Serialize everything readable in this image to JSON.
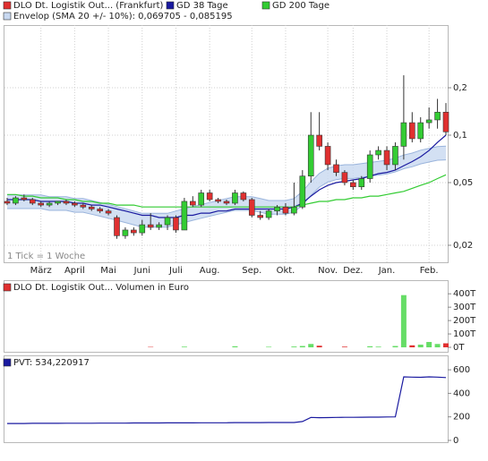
{
  "chart_data": [
    {
      "type": "candlestick",
      "log_scale": true,
      "grid": true,
      "note": "1 Tick = 1 Woche",
      "categories": [
        null,
        null,
        null,
        null,
        "März",
        null,
        null,
        null,
        "April",
        null,
        null,
        null,
        "Mai",
        null,
        null,
        null,
        "Juni",
        null,
        null,
        null,
        "Juli",
        null,
        null,
        null,
        "Aug.",
        null,
        null,
        null,
        null,
        "Sep.",
        null,
        null,
        null,
        "Okt.",
        null,
        null,
        null,
        null,
        "Nov.",
        null,
        null,
        "Dez.",
        null,
        null,
        null,
        "Jan.",
        null,
        null,
        null,
        null,
        "Feb.",
        null,
        null
      ],
      "series": [
        {
          "name": "DLO Dt. Logistik Out... (Frankfurt)",
          "color": "#e03030",
          "up_color": "#33cc33",
          "open": [
            0.038,
            0.037,
            0.04,
            0.039,
            0.037,
            0.036,
            0.037,
            0.038,
            0.037,
            0.036,
            0.035,
            0.034,
            0.033,
            0.03,
            0.023,
            0.025,
            0.024,
            0.027,
            0.026,
            0.027,
            0.03,
            0.025,
            0.038,
            0.036,
            0.043,
            0.039,
            0.038,
            0.037,
            0.043,
            0.039,
            0.031,
            0.03,
            0.033,
            0.035,
            0.032,
            0.035,
            0.055,
            0.1,
            0.085,
            0.065,
            0.058,
            0.05,
            0.047,
            0.053,
            0.075,
            0.08,
            0.065,
            0.085,
            0.12,
            0.095,
            0.12,
            0.125,
            0.14
          ],
          "high": [
            0.04,
            0.041,
            0.042,
            0.04,
            0.038,
            0.038,
            0.038,
            0.039,
            0.038,
            0.037,
            0.036,
            0.035,
            0.034,
            0.031,
            0.026,
            0.026,
            0.029,
            0.032,
            0.028,
            0.031,
            0.031,
            0.04,
            0.041,
            0.045,
            0.045,
            0.04,
            0.039,
            0.045,
            0.044,
            0.04,
            0.033,
            0.034,
            0.036,
            0.037,
            0.05,
            0.06,
            0.14,
            0.14,
            0.09,
            0.07,
            0.06,
            0.052,
            0.055,
            0.08,
            0.085,
            0.085,
            0.09,
            0.24,
            0.14,
            0.13,
            0.15,
            0.17,
            0.16
          ],
          "low": [
            0.036,
            0.036,
            0.038,
            0.036,
            0.035,
            0.035,
            0.036,
            0.036,
            0.035,
            0.034,
            0.033,
            0.032,
            0.031,
            0.022,
            0.022,
            0.023,
            0.023,
            0.025,
            0.025,
            0.025,
            0.024,
            0.025,
            0.035,
            0.035,
            0.038,
            0.037,
            0.036,
            0.036,
            0.038,
            0.03,
            0.029,
            0.029,
            0.031,
            0.031,
            0.031,
            0.034,
            0.05,
            0.08,
            0.06,
            0.055,
            0.048,
            0.045,
            0.045,
            0.05,
            0.07,
            0.06,
            0.06,
            0.07,
            0.09,
            0.09,
            0.11,
            0.11,
            0.1
          ],
          "close": [
            0.037,
            0.04,
            0.039,
            0.037,
            0.036,
            0.037,
            0.038,
            0.037,
            0.036,
            0.035,
            0.034,
            0.033,
            0.032,
            0.023,
            0.025,
            0.024,
            0.027,
            0.026,
            0.027,
            0.03,
            0.025,
            0.038,
            0.036,
            0.043,
            0.039,
            0.038,
            0.037,
            0.043,
            0.039,
            0.031,
            0.03,
            0.033,
            0.035,
            0.032,
            0.035,
            0.055,
            0.1,
            0.085,
            0.065,
            0.058,
            0.05,
            0.047,
            0.053,
            0.075,
            0.08,
            0.065,
            0.085,
            0.12,
            0.095,
            0.12,
            0.125,
            0.14,
            0.105
          ]
        },
        {
          "name": "GD 38 Tage",
          "color": "#1a1aa0",
          "values": [
            0.039,
            0.039,
            0.039,
            0.039,
            0.038,
            0.038,
            0.038,
            0.038,
            0.037,
            0.037,
            0.036,
            0.036,
            0.035,
            0.034,
            0.033,
            0.032,
            0.031,
            0.031,
            0.03,
            0.03,
            0.03,
            0.031,
            0.031,
            0.032,
            0.032,
            0.033,
            0.033,
            0.034,
            0.034,
            0.034,
            0.034,
            0.034,
            0.034,
            0.034,
            0.035,
            0.037,
            0.041,
            0.045,
            0.048,
            0.05,
            0.051,
            0.052,
            0.053,
            0.055,
            0.057,
            0.058,
            0.06,
            0.064,
            0.068,
            0.073,
            0.08,
            0.09,
            0.1
          ]
        },
        {
          "name": "GD 200 Tage",
          "color": "#33cc33",
          "values": [
            0.042,
            0.042,
            0.041,
            0.041,
            0.04,
            0.04,
            0.04,
            0.039,
            0.039,
            0.038,
            0.038,
            0.037,
            0.037,
            0.036,
            0.036,
            0.036,
            0.035,
            0.035,
            0.035,
            0.035,
            0.035,
            0.035,
            0.035,
            0.035,
            0.035,
            0.035,
            0.035,
            0.035,
            0.035,
            0.035,
            0.035,
            0.035,
            0.035,
            0.035,
            0.035,
            0.036,
            0.037,
            0.038,
            0.038,
            0.039,
            0.039,
            0.04,
            0.04,
            0.041,
            0.041,
            0.042,
            0.043,
            0.044,
            0.046,
            0.048,
            0.05,
            0.053,
            0.056
          ]
        }
      ],
      "envelope": {
        "name": "Envelop (SMA 20 +/- 10%): 0,069705 - 0,085195",
        "color": "#c8d8f0",
        "line_color": "#9ab4dc",
        "upper": [
          0.0418,
          0.0418,
          0.0418,
          0.0418,
          0.0418,
          0.0407,
          0.0407,
          0.0407,
          0.0396,
          0.0396,
          0.0385,
          0.0374,
          0.0363,
          0.0352,
          0.0341,
          0.033,
          0.0319,
          0.0319,
          0.0319,
          0.0319,
          0.033,
          0.0341,
          0.0352,
          0.0363,
          0.0374,
          0.0385,
          0.0396,
          0.0407,
          0.0407,
          0.0407,
          0.0396,
          0.0385,
          0.0385,
          0.0385,
          0.0396,
          0.044,
          0.0506,
          0.0572,
          0.0616,
          0.0638,
          0.0649,
          0.0649,
          0.066,
          0.0671,
          0.0682,
          0.0693,
          0.0715,
          0.0748,
          0.077,
          0.0803,
          0.0825,
          0.0847,
          0.085195
        ],
        "lower": [
          0.0342,
          0.0342,
          0.0342,
          0.0342,
          0.0342,
          0.0333,
          0.0333,
          0.0333,
          0.0324,
          0.0324,
          0.0315,
          0.0306,
          0.0297,
          0.0288,
          0.0279,
          0.027,
          0.0261,
          0.0261,
          0.0261,
          0.0261,
          0.027,
          0.0279,
          0.0288,
          0.0297,
          0.0306,
          0.0315,
          0.0324,
          0.0333,
          0.0333,
          0.0333,
          0.0324,
          0.0315,
          0.0315,
          0.0315,
          0.0324,
          0.036,
          0.0414,
          0.0468,
          0.0504,
          0.0522,
          0.0531,
          0.0531,
          0.054,
          0.0549,
          0.0558,
          0.0567,
          0.0585,
          0.0612,
          0.063,
          0.0657,
          0.0675,
          0.0693,
          0.069705
        ]
      },
      "ylim": [
        0.0156,
        0.5
      ],
      "yticks": [
        {
          "value": 0.2,
          "label": "0,2"
        },
        {
          "value": 0.1,
          "label": "0,1"
        },
        {
          "value": 0.05,
          "label": "0,05"
        },
        {
          "value": 0.02,
          "label": "0,02"
        }
      ]
    },
    {
      "type": "bar",
      "title": "DLO Dt. Logistik Out... Volumen in Euro",
      "up_color": "#66dd66",
      "down_color": "#e03030",
      "values": [
        0,
        0,
        0,
        0,
        0,
        0,
        0,
        0,
        0,
        0,
        0,
        0,
        0,
        0,
        0,
        0,
        0,
        3,
        0,
        0,
        0,
        5,
        0,
        0,
        0,
        0,
        0,
        8,
        0,
        0,
        0,
        4,
        0,
        0,
        6,
        10,
        25,
        12,
        0,
        0,
        5,
        0,
        0,
        8,
        5,
        0,
        10,
        390,
        15,
        20,
        40,
        25,
        30
      ],
      "ylim": [
        -40,
        495
      ],
      "yticks": [
        {
          "value": 400,
          "label": "400T"
        },
        {
          "value": 300,
          "label": "300T"
        },
        {
          "value": 200,
          "label": "200T"
        },
        {
          "value": 100,
          "label": "100T"
        },
        {
          "value": 0,
          "label": "0T"
        }
      ]
    },
    {
      "type": "line",
      "series": [
        {
          "name": "PVT: 534,220917",
          "color": "#1a1aa0",
          "values": [
            144,
            144,
            144,
            145,
            145,
            145,
            145,
            146,
            146,
            146,
            146,
            147,
            147,
            147,
            147,
            148,
            148,
            148,
            148,
            149,
            149,
            149,
            149,
            150,
            150,
            150,
            150,
            151,
            151,
            151,
            151,
            152,
            152,
            152,
            152,
            160,
            195,
            193,
            194,
            195,
            196,
            196,
            197,
            198,
            198,
            199,
            200,
            540,
            538,
            536,
            540,
            538,
            534.220917
          ]
        }
      ],
      "ylim": [
        -23,
        715
      ],
      "yticks": [
        600,
        400,
        200,
        0
      ]
    }
  ]
}
